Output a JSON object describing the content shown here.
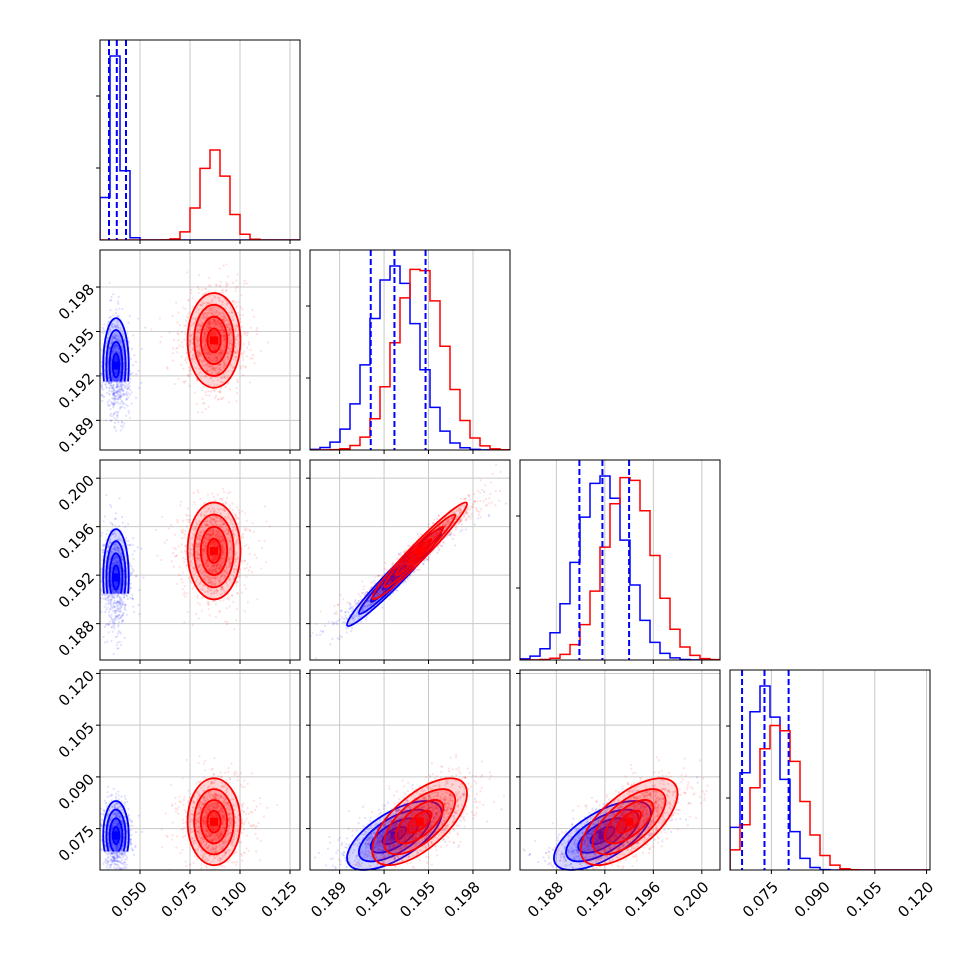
{
  "colors": {
    "blue": "#0000ff",
    "red": "#ff0000",
    "grid": "#c8c8c8",
    "axis": "#000000"
  },
  "chart_data": {
    "type": "corner",
    "parameters": 4,
    "grid": true,
    "series": [
      {
        "color": "blue",
        "mean": [
          0.038,
          0.1927,
          0.1918,
          0.073
        ],
        "std": [
          0.0032,
          0.0016,
          0.002,
          0.005
        ],
        "quantile_lines": [
          [
            0.0345,
            0.0384,
            0.043
          ],
          [
            0.1911,
            0.1927,
            0.1948
          ],
          [
            0.1899,
            0.1918,
            0.194
          ],
          [
            0.0665,
            0.073,
            0.08
          ]
        ],
        "point_count": 900
      },
      {
        "color": "red",
        "mean": [
          0.087,
          0.1944,
          0.194,
          0.077
        ],
        "std": [
          0.0066,
          0.0016,
          0.002,
          0.0063
        ],
        "point_count": 1400
      }
    ],
    "axes": [
      {
        "range": [
          0.03,
          0.13
        ],
        "ticks": [
          0.05,
          0.075,
          0.1,
          0.125
        ],
        "labels": [
          "0.050",
          "0.075",
          "0.100",
          "0.125"
        ]
      },
      {
        "range": [
          0.187,
          0.2005
        ],
        "ticks": [
          0.189,
          0.192,
          0.195,
          0.198
        ],
        "labels": [
          "0.189",
          "0.192",
          "0.195",
          "0.198"
        ]
      },
      {
        "range": [
          0.185,
          0.2015
        ],
        "ticks": [
          0.188,
          0.192,
          0.196,
          0.2
        ],
        "labels": [
          "0.188",
          "0.192",
          "0.196",
          "0.200"
        ]
      },
      {
        "range": [
          0.063,
          0.121
        ],
        "ticks": [
          0.075,
          0.09,
          0.105,
          0.12
        ],
        "labels": [
          "0.075",
          "0.090",
          "0.105",
          "0.120"
        ]
      }
    ],
    "correlations": {
      "0-1": 0.0,
      "0-2": 0.0,
      "0-3": 0.0,
      "1-2": 0.97,
      "1-3": 0.65,
      "2-3": 0.65
    }
  }
}
